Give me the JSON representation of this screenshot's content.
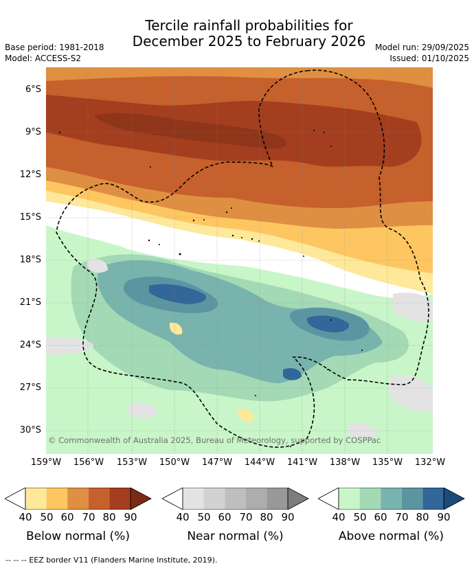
{
  "title_line1": "Tercile rainfall probabilities for",
  "title_line2": "December 2025 to February 2026",
  "base_period": "Base period: 1981-2018",
  "model": "Model: ACCESS-S2",
  "model_run": "Model run: 29/09/2025",
  "issued": "Issued: 01/10/2025",
  "copyright": "© Commonwealth of Australia 2025, Bureau of Meteorology, supported by COSPPac",
  "footer": "--  --  -- EEZ border V11 (Flanders Marine Institute, 2019).",
  "lat_labels": [
    "6°S",
    "9°S",
    "12°S",
    "15°S",
    "18°S",
    "21°S",
    "24°S",
    "27°S",
    "30°S"
  ],
  "lon_labels": [
    "159°W",
    "156°W",
    "153°W",
    "150°W",
    "147°W",
    "144°W",
    "141°W",
    "138°W",
    "135°W",
    "132°W"
  ],
  "colorbars": [
    {
      "title": "Below normal (%)",
      "ticks": [
        "40",
        "50",
        "60",
        "70",
        "80",
        "90"
      ],
      "colors": [
        "#ffffff",
        "#fee89a",
        "#fdc661",
        "#df8f42",
        "#c6602c",
        "#a33e1f",
        "#7c2a14"
      ]
    },
    {
      "title": "Near normal (%)",
      "ticks": [
        "40",
        "50",
        "60",
        "70",
        "80",
        "90"
      ],
      "colors": [
        "#ffffff",
        "#e3e3e3",
        "#d2d2d2",
        "#bebebe",
        "#adadad",
        "#999999",
        "#7d7d7d"
      ]
    },
    {
      "title": "Above normal (%)",
      "ticks": [
        "40",
        "50",
        "60",
        "70",
        "80",
        "90"
      ],
      "colors": [
        "#ffffff",
        "#c8f6c8",
        "#a4d9b6",
        "#79b3ad",
        "#5c95a2",
        "#336699",
        "#1d4a7a"
      ]
    }
  ]
}
